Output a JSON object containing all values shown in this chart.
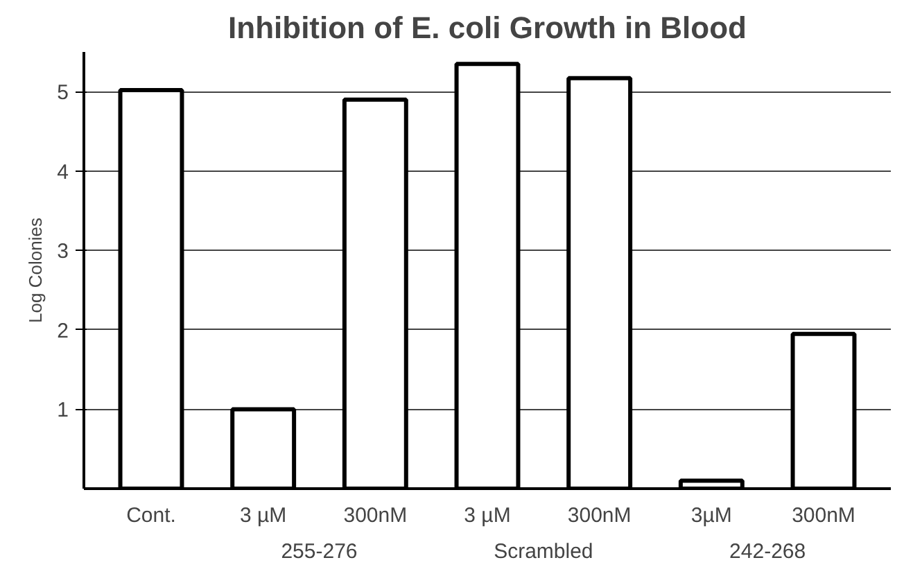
{
  "chart_data": {
    "type": "bar",
    "title": "Inhibition of E. coli Growth in Blood",
    "ylabel": "Log Colonies",
    "categories": [
      "Cont.",
      "3 µM",
      "300nM",
      "3 µM",
      "300nM",
      "3µM",
      "300nM"
    ],
    "values": [
      5.02,
      1.0,
      4.9,
      5.35,
      5.17,
      0.1,
      1.95
    ],
    "color": "#ffffff",
    "annotations": [
      "255-276",
      "Scrambled",
      "242-268"
    ],
    "ylim": [
      0,
      5.5
    ],
    "yticks": [
      1,
      2,
      3,
      4,
      5
    ],
    "grid": "y"
  }
}
